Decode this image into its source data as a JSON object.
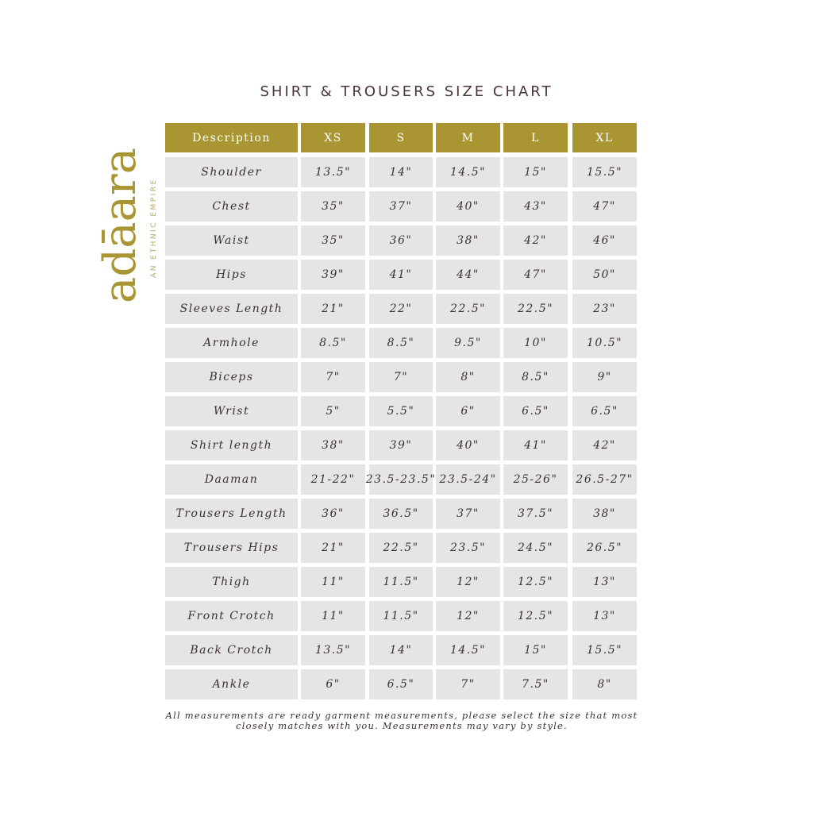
{
  "title": "SHIRT & TROUSERS SIZE CHART",
  "logo": {
    "wordmark": "adāara",
    "tagline": "AN ETHNIC EMPIRE"
  },
  "colors": {
    "header": "#a99632",
    "cell": "#e5e5e5",
    "text": "#3d3030"
  },
  "table": {
    "headers": [
      "Description",
      "XS",
      "S",
      "M",
      "L",
      "XL"
    ],
    "rows": [
      [
        "Shoulder",
        "13.5\"",
        "14\"",
        "14.5\"",
        "15\"",
        "15.5\""
      ],
      [
        "Chest",
        "35\"",
        "37\"",
        "40\"",
        "43\"",
        "47\""
      ],
      [
        "Waist",
        "35\"",
        "36\"",
        "38\"",
        "42\"",
        "46\""
      ],
      [
        "Hips",
        "39\"",
        "41\"",
        "44\"",
        "47\"",
        "50\""
      ],
      [
        "Sleeves Length",
        "21\"",
        "22\"",
        "22.5\"",
        "22.5\"",
        "23\""
      ],
      [
        "Armhole",
        "8.5\"",
        "8.5\"",
        "9.5\"",
        "10\"",
        "10.5\""
      ],
      [
        "Biceps",
        "7\"",
        "7\"",
        "8\"",
        "8.5\"",
        "9\""
      ],
      [
        "Wrist",
        "5\"",
        "5.5\"",
        "6\"",
        "6.5\"",
        "6.5\""
      ],
      [
        "Shirt length",
        "38\"",
        "39\"",
        "40\"",
        "41\"",
        "42\""
      ],
      [
        "Daaman",
        "21-22\"",
        "23.5-23.5\"",
        "23.5-24\"",
        "25-26\"",
        "26.5-27\""
      ],
      [
        "Trousers Length",
        "36\"",
        "36.5\"",
        "37\"",
        "37.5\"",
        "38\""
      ],
      [
        "Trousers Hips",
        "21\"",
        "22.5\"",
        "23.5\"",
        "24.5\"",
        "26.5\""
      ],
      [
        "Thigh",
        "11\"",
        "11.5\"",
        "12\"",
        "12.5\"",
        "13\""
      ],
      [
        "Front Crotch",
        "11\"",
        "11.5\"",
        "12\"",
        "12.5\"",
        "13\""
      ],
      [
        "Back Crotch",
        "13.5\"",
        "14\"",
        "14.5\"",
        "15\"",
        "15.5\""
      ],
      [
        "Ankle",
        "6\"",
        "6.5\"",
        "7\"",
        "7.5\"",
        "8\""
      ]
    ]
  },
  "note": "All measurements are ready garment measurements, please select the size that most closely matches with you. Measurements may vary by style."
}
